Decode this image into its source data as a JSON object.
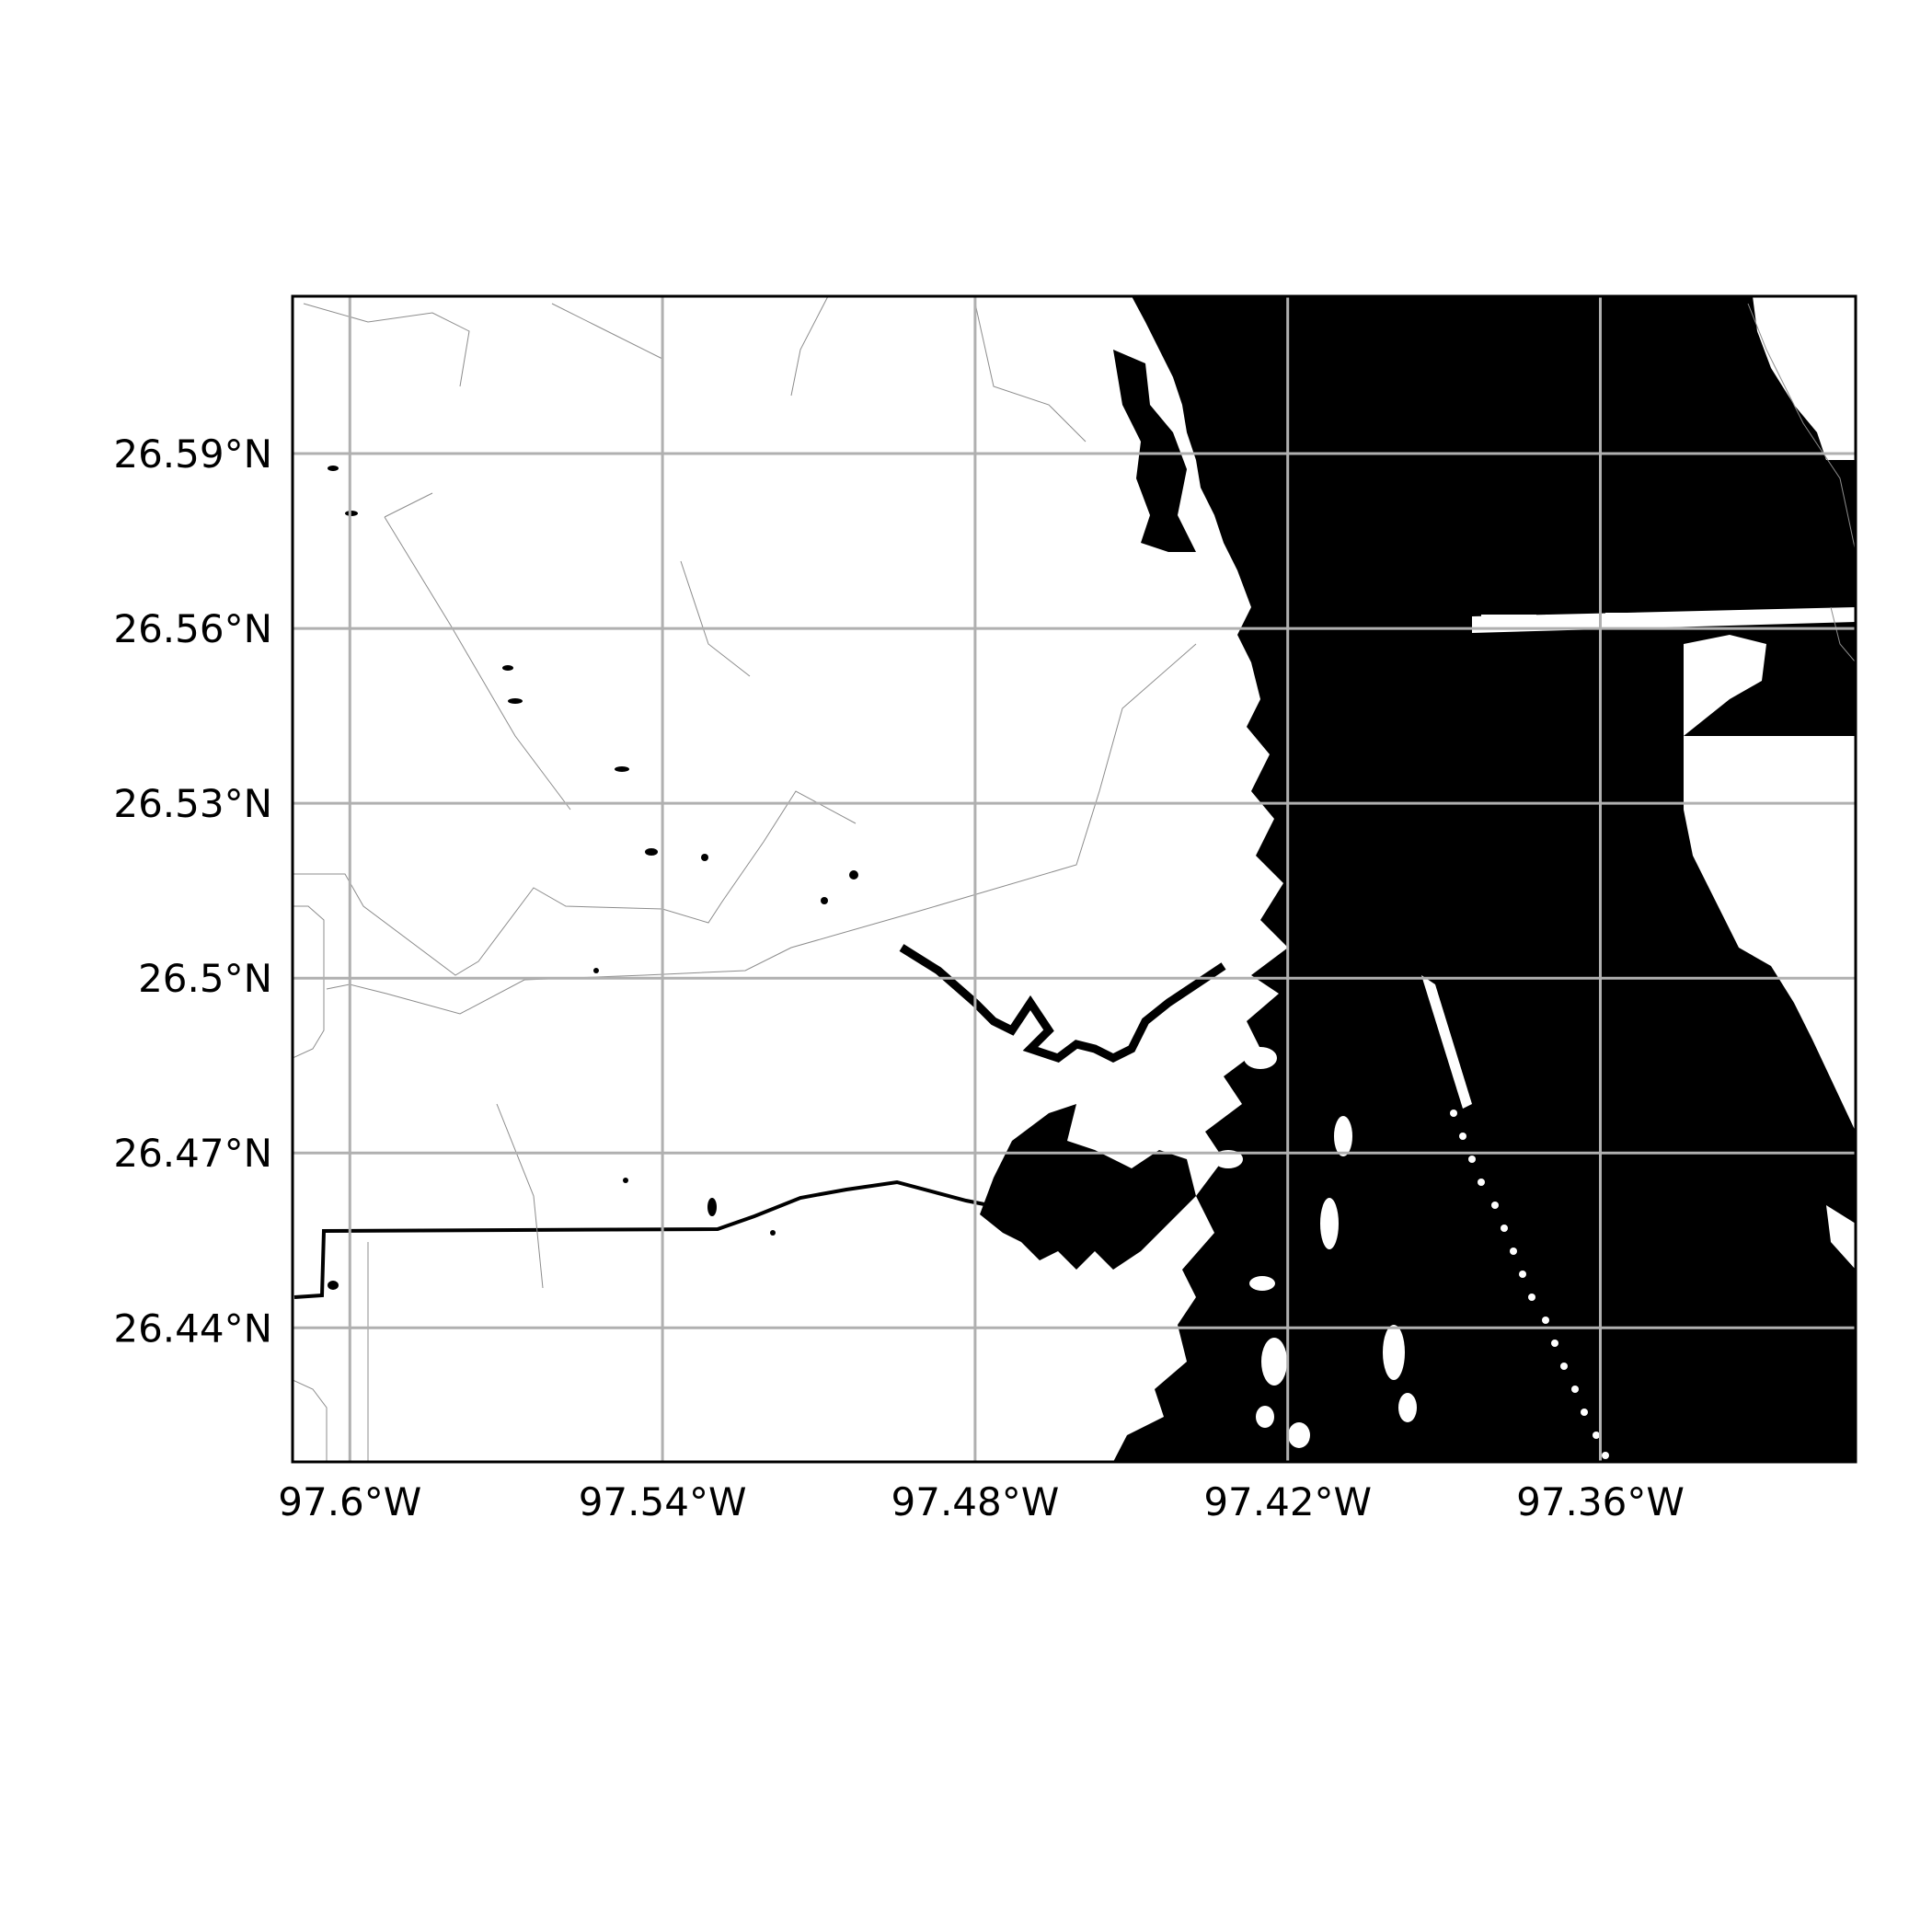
{
  "map": {
    "lon_range": [
      -97.611,
      -97.311
    ],
    "lat_range": [
      26.417,
      26.617
    ],
    "x_ticks": [
      {
        "value": -97.6,
        "label": "97.6°W"
      },
      {
        "value": -97.54,
        "label": "97.54°W"
      },
      {
        "value": -97.48,
        "label": "97.48°W"
      },
      {
        "value": -97.42,
        "label": "97.42°W"
      },
      {
        "value": -97.36,
        "label": "97.36°W"
      }
    ],
    "y_ticks": [
      {
        "value": 26.59,
        "label": "26.59°N"
      },
      {
        "value": 26.56,
        "label": "26.56°N"
      },
      {
        "value": 26.53,
        "label": "26.53°N"
      },
      {
        "value": 26.5,
        "label": "26.5°N"
      },
      {
        "value": 26.47,
        "label": "26.47°N"
      },
      {
        "value": 26.44,
        "label": "26.44°N"
      }
    ],
    "grid": true,
    "colors": {
      "water": "#000000",
      "land": "#ffffff",
      "grid": "#b0b0b0",
      "frame": "#000000"
    }
  }
}
